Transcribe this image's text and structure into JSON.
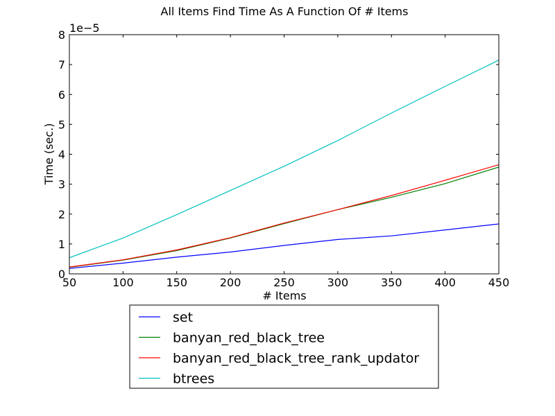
{
  "chart_data": {
    "type": "line",
    "title": "All Items Find Time As A Function Of # Items",
    "xlabel": "# Items",
    "ylabel": "Time (sec.)",
    "y_offset_label": "1e−5",
    "xlim": [
      50,
      450
    ],
    "ylim": [
      0,
      8
    ],
    "x_ticks": [
      50,
      100,
      150,
      200,
      250,
      300,
      350,
      400,
      450
    ],
    "y_ticks": [
      0,
      1,
      2,
      3,
      4,
      5,
      6,
      7,
      8
    ],
    "x": [
      50,
      100,
      150,
      200,
      250,
      300,
      350,
      400,
      450
    ],
    "legend_position": "below plot",
    "grid": false,
    "series": [
      {
        "name": "set",
        "color": "#0000ff",
        "values": [
          0.18,
          0.36,
          0.56,
          0.73,
          0.95,
          1.15,
          1.27,
          1.47,
          1.67
        ]
      },
      {
        "name": "banyan_red_black_tree",
        "color": "#008000",
        "values": [
          0.22,
          0.46,
          0.78,
          1.2,
          1.68,
          2.15,
          2.56,
          3.02,
          3.57
        ]
      },
      {
        "name": "banyan_red_black_tree_rank_updator",
        "color": "#ff0000",
        "values": [
          0.23,
          0.47,
          0.8,
          1.21,
          1.7,
          2.15,
          2.62,
          3.13,
          3.65
        ]
      },
      {
        "name": "btrees",
        "color": "#00bfbf",
        "values": [
          0.54,
          1.2,
          1.98,
          2.79,
          3.6,
          4.46,
          5.38,
          6.27,
          7.15
        ]
      }
    ]
  }
}
